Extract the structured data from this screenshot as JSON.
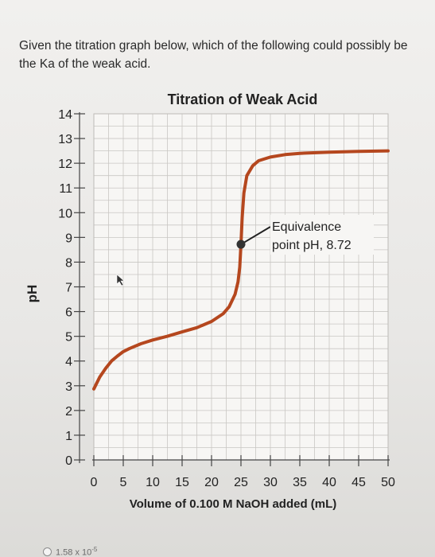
{
  "question": {
    "text": "Given the titration graph below, which of the following could possibly be the Ka of the weak acid."
  },
  "answer_option": {
    "text_base": "1.58 x 10",
    "text_exp": "-5"
  },
  "chart_data": {
    "type": "line",
    "title": "Titration of Weak Acid",
    "xlabel": "Volume of 0.100 M NaOH added (mL)",
    "ylabel": "pH",
    "xlim": [
      0,
      50
    ],
    "ylim": [
      0,
      14
    ],
    "x_ticks": [
      "0",
      "5",
      "10",
      "15",
      "20",
      "25",
      "30",
      "35",
      "40",
      "45",
      "50"
    ],
    "y_ticks": [
      "0",
      "1",
      "2",
      "3",
      "4",
      "5",
      "6",
      "7",
      "8",
      "9",
      "10",
      "11",
      "12",
      "13",
      "14"
    ],
    "grid": true,
    "line_color": "#b5471e",
    "series": [
      {
        "x": [
          0,
          1,
          2,
          3,
          4,
          5,
          6,
          8,
          10,
          12.5,
          15,
          17.5,
          20,
          22,
          23,
          24,
          24.5,
          24.8,
          25,
          25.2,
          25.5,
          26,
          27,
          28,
          30,
          32.5,
          35,
          40,
          45,
          50
        ],
        "y": [
          2.87,
          3.35,
          3.7,
          4.0,
          4.2,
          4.38,
          4.5,
          4.7,
          4.85,
          5.0,
          5.18,
          5.35,
          5.6,
          5.92,
          6.2,
          6.7,
          7.2,
          7.8,
          8.72,
          9.8,
          10.8,
          11.5,
          11.9,
          12.1,
          12.25,
          12.35,
          12.4,
          12.45,
          12.48,
          12.5
        ]
      }
    ],
    "equivalence_point": {
      "x": 25,
      "y": 8.72
    },
    "annotation": {
      "line1": "Equivalence",
      "line2": "point pH, 8.72"
    }
  }
}
